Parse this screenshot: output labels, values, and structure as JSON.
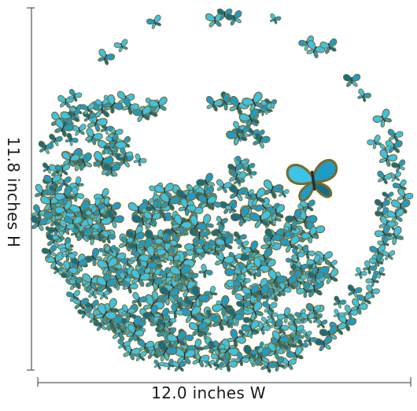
{
  "dimensions": {
    "width_label": "12.0 inches W",
    "height_label": "11.8 inches H"
  },
  "artwork": {
    "subject": "blue-butterfly-icon",
    "colors": {
      "wing_light": "#3cc3e6",
      "wing_mid": "#1e9cc8",
      "wing_dark": "#146f86",
      "wing_edge": "#7a6a2c",
      "body": "#2b2b2b",
      "measure_line": "#333333"
    }
  }
}
